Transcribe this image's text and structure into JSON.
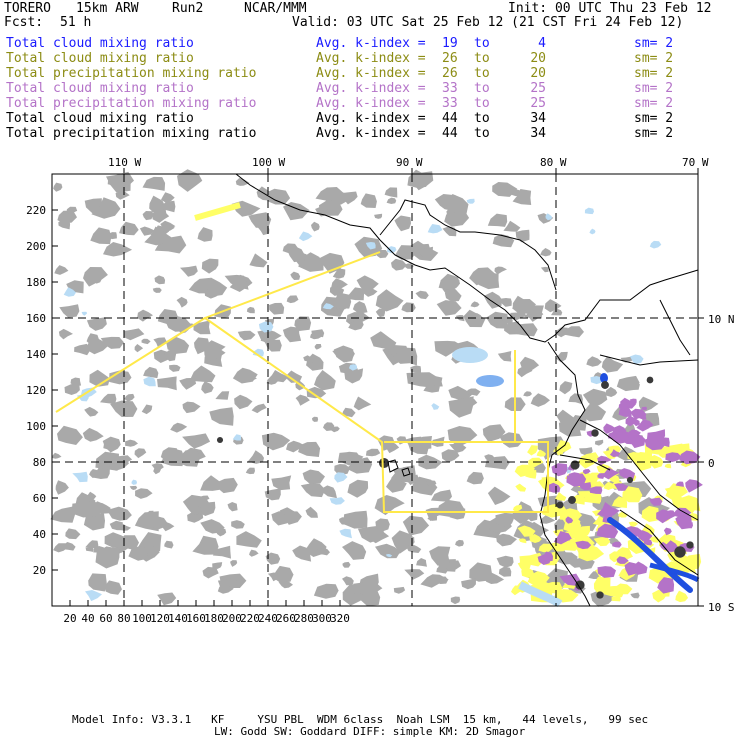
{
  "header": {
    "model": "TORERO",
    "resolution": "15km ARW",
    "run": "Run2",
    "org": "NCAR/MMM",
    "init": "Init: 00 UTC Thu 23 Feb 12",
    "fcst_label": "Fcst:",
    "fcst_value": "51 h",
    "valid": "Valid: 03 UTC Sat 25 Feb 12 (21 CST Fri 24 Feb 12)"
  },
  "legend_rows": [
    {
      "field": "Total cloud mixing ratio",
      "index": "Avg. k-index =",
      "from": "19",
      "to_word": "to",
      "to": "4",
      "sm": "sm= 2",
      "color": "#1a1aff"
    },
    {
      "field": "Total cloud mixing ratio",
      "index": "Avg. k-index =",
      "from": "26",
      "to_word": "to",
      "to": "20",
      "sm": "sm= 2",
      "color": "#8c8c14"
    },
    {
      "field": "Total precipitation mixing ratio",
      "index": "Avg. k-index =",
      "from": "26",
      "to_word": "to",
      "to": "20",
      "sm": "sm= 2",
      "color": "#8c8c14"
    },
    {
      "field": "Total cloud mixing ratio",
      "index": "Avg. k-index =",
      "from": "33",
      "to_word": "to",
      "to": "25",
      "sm": "sm= 2",
      "color": "#b473c8"
    },
    {
      "field": "Total precipitation mixing ratio",
      "index": "Avg. k-index =",
      "from": "33",
      "to_word": "to",
      "to": "25",
      "sm": "sm= 2",
      "color": "#b473c8"
    },
    {
      "field": "Total cloud mixing ratio",
      "index": "Avg. k-index =",
      "from": "44",
      "to_word": "to",
      "to": "34",
      "sm": "sm= 2",
      "color": "#000000"
    },
    {
      "field": "Total precipitation mixing ratio",
      "index": "Avg. k-index =",
      "from": "44",
      "to_word": "to",
      "to": "34",
      "sm": "sm= 2",
      "color": "#000000"
    }
  ],
  "map": {
    "lon_labels": [
      "110 W",
      "100 W",
      "90 W",
      "80 W",
      "70 W"
    ],
    "lat_labels": [
      "10 N",
      "0",
      "10 S"
    ],
    "x_ticks": [
      "20",
      "40",
      "60",
      "80",
      "100",
      "120",
      "140",
      "160",
      "180",
      "200",
      "220",
      "240",
      "260",
      "280",
      "300",
      "320"
    ],
    "y_ticks": [
      "20",
      "40",
      "60",
      "80",
      "100",
      "120",
      "140",
      "160",
      "180",
      "200",
      "220"
    ],
    "colors": {
      "cloud_gray": "#a9a9a9",
      "yellow": "#ffff66",
      "purple": "#b473c8",
      "light_blue": "#b9dcf5",
      "blue": "#1f4fe0",
      "dark": "#3a3a3a",
      "outline_yellow": "#ffe94a"
    }
  },
  "footer": {
    "line1": "Model Info: V3.3.1   KF     YSU PBL  WDM 6class  Noah LSM  15 km,   44 levels,   99 sec",
    "line2": "LW: Godd SW: Goddard DIFF: simple KM: 2D Smagor"
  }
}
